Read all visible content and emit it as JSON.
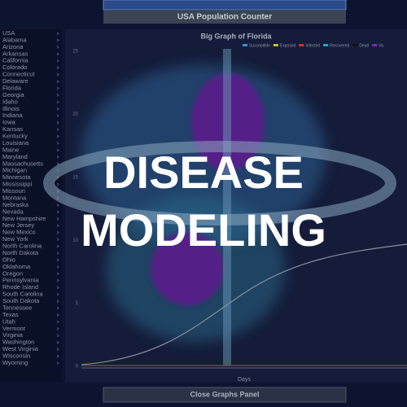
{
  "header": {
    "title": "USA Population Counter"
  },
  "sidebar": {
    "items": [
      "USA",
      "Alabama",
      "Arizona",
      "Arkansas",
      "California",
      "Colorado",
      "Connecticut",
      "Delaware",
      "Florida",
      "Georgia",
      "Idaho",
      "Illinois",
      "Indiana",
      "Iowa",
      "Kansas",
      "Kentucky",
      "Louisiana",
      "Maine",
      "Maryland",
      "Massachusetts",
      "Michigan",
      "Minnesota",
      "Mississippi",
      "Missouri",
      "Montana",
      "Nebraska",
      "Nevada",
      "New Hampshire",
      "New Jersey",
      "New Mexico",
      "New York",
      "North Carolina",
      "North Dakota",
      "Ohio",
      "Oklahoma",
      "Oregon",
      "Pennsylvania",
      "Rhode Island",
      "South Carolina",
      "South Dakota",
      "Tennessee",
      "Texas",
      "Utah",
      "Vermont",
      "Virginia",
      "Washington",
      "West Virginia",
      "Wisconsin",
      "Wyoming"
    ]
  },
  "graph": {
    "title": "Big Graph of Florida",
    "legend": [
      {
        "name": "Susceptible",
        "color": "#3a8fd0"
      },
      {
        "name": "Exposed",
        "color": "#c8c020"
      },
      {
        "name": "Infected",
        "color": "#d03030"
      },
      {
        "name": "Recovered",
        "color": "#30a0d0"
      },
      {
        "name": "Dead",
        "color": "#111111"
      },
      {
        "name": "Va",
        "color": "#7a2ab0"
      }
    ],
    "yticks": [
      "25",
      "20",
      "15",
      "10",
      "5",
      "0"
    ],
    "xlabel": "Days"
  },
  "footer": {
    "button": "Close Graphs Panel"
  },
  "overlay": {
    "lines": [
      "DISEASE",
      "MODELING"
    ]
  }
}
